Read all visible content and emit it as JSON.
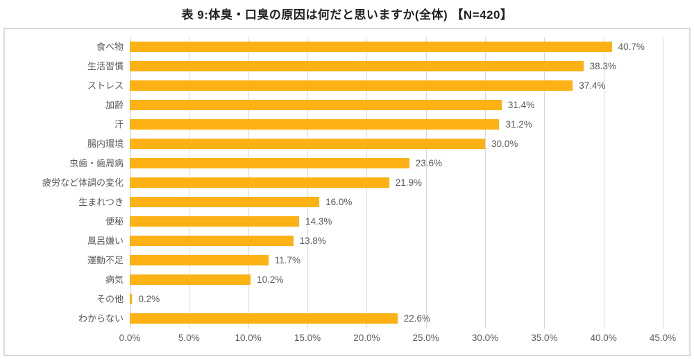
{
  "title": "表 9:体臭・口臭の原因は何だと思いますか(全体) 【N=420】",
  "colors": {
    "bar": "#fcb215",
    "label_text": "#595959",
    "title_text": "#1f1f1f",
    "gridline": "#d9d9d9",
    "border": "#d9d9d9"
  },
  "chart_data": {
    "type": "bar",
    "orientation": "horizontal",
    "title": "表 9:体臭・口臭の原因は何だと思いますか(全体) 【N=420】",
    "categories": [
      "食べ物",
      "生活習慣",
      "ストレス",
      "加齢",
      "汗",
      "腸内環境",
      "虫歯・歯周病",
      "疲労など体調の変化",
      "生まれつき",
      "便秘",
      "風呂嫌い",
      "運動不足",
      "病気",
      "その他",
      "わからない"
    ],
    "values": [
      40.7,
      38.3,
      37.4,
      31.4,
      31.2,
      30.0,
      23.6,
      21.9,
      16.0,
      14.3,
      13.8,
      11.7,
      10.2,
      0.2,
      22.6
    ],
    "value_labels": [
      "40.7%",
      "38.3%",
      "37.4%",
      "31.4%",
      "31.2%",
      "30.0%",
      "23.6%",
      "21.9%",
      "16.0%",
      "14.3%",
      "13.8%",
      "11.7%",
      "10.2%",
      "0.2%",
      "22.6%"
    ],
    "x_ticks": [
      "0.0%",
      "5.0%",
      "10.0%",
      "15.0%",
      "20.0%",
      "25.0%",
      "30.0%",
      "35.0%",
      "40.0%",
      "45.0%"
    ],
    "x_tick_values": [
      0,
      5,
      10,
      15,
      20,
      25,
      30,
      35,
      40,
      45
    ],
    "xlim": [
      0,
      45
    ],
    "xlabel": "",
    "ylabel": "",
    "grid": "vertical",
    "legend": "none"
  }
}
